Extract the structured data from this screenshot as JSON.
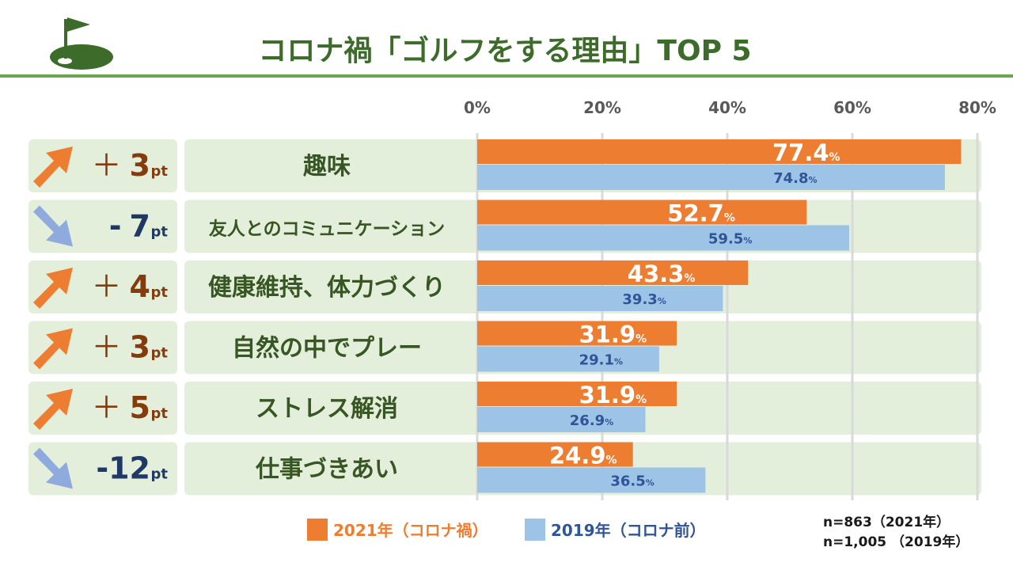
{
  "header": {
    "title": "コロナ禍「ゴルフをする理由」TOP 5"
  },
  "colors": {
    "accent_green": "#3d6b2a",
    "line_green": "#6aa84f",
    "row_bg": "#e4efdb",
    "bar_2021": "#ed7d31",
    "bar_2019": "#9dc3e6",
    "up_arrow": "#ed7d31",
    "down_arrow": "#8faadc",
    "up_text": "#843c0c",
    "down_text": "#1f3864",
    "label_2019_text": "#2f5597",
    "gridline": "#d9d9d9"
  },
  "chart_data": {
    "type": "bar",
    "orientation": "horizontal",
    "title": "コロナ禍「ゴルフをする理由」TOP 5",
    "categories": [
      "趣味",
      "友人とのコミュニケーション",
      "健康維持、体力づくり",
      "自然の中でプレー",
      "ストレス解消",
      "仕事づきあい"
    ],
    "series": [
      {
        "name": "2021年（コロナ禍）",
        "values": [
          77.4,
          52.7,
          43.3,
          31.9,
          31.9,
          24.9
        ]
      },
      {
        "name": "2019年（コロナ前）",
        "values": [
          74.8,
          59.5,
          39.3,
          29.1,
          26.9,
          36.5
        ]
      }
    ],
    "value_labels_2021": [
      "77.4",
      "52.7",
      "43.3",
      "31.9",
      "31.9",
      "24.9"
    ],
    "value_labels_2019": [
      "74.8",
      "59.5",
      "39.3",
      "29.1",
      "26.9",
      "36.5"
    ],
    "value_unit": "%",
    "xlim": [
      0,
      80
    ],
    "xticks": [
      0,
      20,
      40,
      60,
      80
    ],
    "xtick_labels": [
      "0%",
      "20%",
      "40%",
      "60%",
      "80%"
    ],
    "grid": true,
    "changes": [
      {
        "direction": "up",
        "sign": "＋",
        "value": "3",
        "unit": "pt"
      },
      {
        "direction": "down",
        "sign": "-",
        "value": "7",
        "unit": "pt"
      },
      {
        "direction": "up",
        "sign": "＋",
        "value": "4",
        "unit": "pt"
      },
      {
        "direction": "up",
        "sign": "＋",
        "value": "3",
        "unit": "pt"
      },
      {
        "direction": "up",
        "sign": "＋",
        "value": "5",
        "unit": "pt"
      },
      {
        "direction": "down",
        "sign": "-",
        "value": "12",
        "unit": "pt"
      }
    ]
  },
  "legend": {
    "items": [
      {
        "label": "2021年（コロナ禍）",
        "color": "#ed7d31",
        "text_color": "#ed7d31"
      },
      {
        "label": "2019年（コロナ前）",
        "color": "#9dc3e6",
        "text_color": "#2f5597"
      }
    ]
  },
  "notes": {
    "n_2021": "n=863（2021年）",
    "n_2019": "n=1,005 （2019年）"
  }
}
